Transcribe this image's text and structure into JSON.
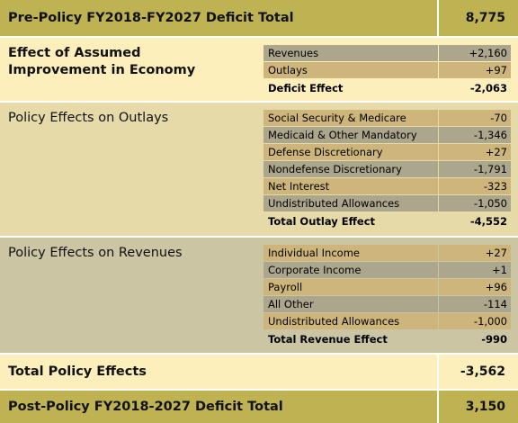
{
  "header": {
    "label": "Pre-Policy FY2018-FY2027 Deficit Total",
    "value": "8,775"
  },
  "sections": [
    {
      "title": "Effect of Assumed Improvement in Economy",
      "items": [
        {
          "label": "Revenues",
          "value": "+2,160"
        },
        {
          "label": "Outlays",
          "value": "+97"
        }
      ],
      "total": {
        "label": "Deficit Effect",
        "value": "-2,063"
      }
    },
    {
      "title": "Policy Effects on Outlays",
      "items": [
        {
          "label": "Social Security & Medicare",
          "value": "-70"
        },
        {
          "label": "Medicaid & Other Mandatory",
          "value": "-1,346"
        },
        {
          "label": "Defense Discretionary",
          "value": "+27"
        },
        {
          "label": "Nondefense Discretionary",
          "value": "-1,791"
        },
        {
          "label": "Net Interest",
          "value": "-323"
        },
        {
          "label": "Undistributed Allowances",
          "value": "-1,050"
        }
      ],
      "total": {
        "label": "Total Outlay Effect",
        "value": "-4,552"
      }
    },
    {
      "title": "Policy Effects on Revenues",
      "items": [
        {
          "label": "Individual Income",
          "value": "+27"
        },
        {
          "label": "Corporate Income",
          "value": "+1"
        },
        {
          "label": "Payroll",
          "value": "+96"
        },
        {
          "label": "All Other",
          "value": "-114"
        },
        {
          "label": "Undistributed Allowances",
          "value": "-1,000"
        }
      ],
      "total": {
        "label": "Total Revenue Effect",
        "value": "-990"
      }
    }
  ],
  "total_policy": {
    "label": "Total Policy Effects",
    "value": "-3,562"
  },
  "post_policy": {
    "label": "Post-Policy FY2018-2027 Deficit Total",
    "value": "3,150"
  }
}
